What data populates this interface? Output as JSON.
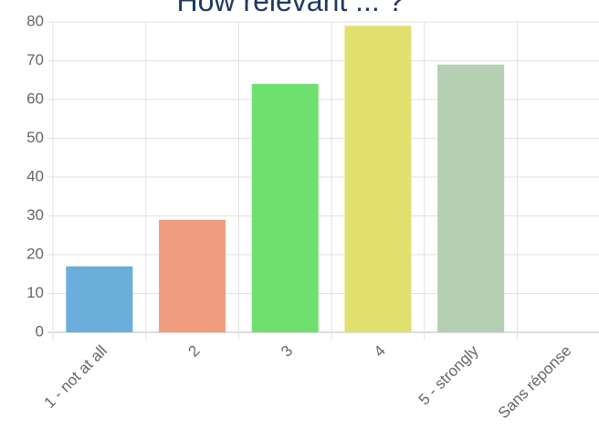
{
  "chart_data": {
    "type": "bar",
    "title": "How relevant ... ?",
    "categories": [
      "1 - not at all",
      "2",
      "3",
      "4",
      "5 - strongly",
      "Sans réponse"
    ],
    "values": [
      17,
      29,
      64,
      79,
      69,
      0
    ],
    "colors": [
      "#6aaedb",
      "#f09c80",
      "#6ee06e",
      "#e1df6e",
      "#b5cfb2",
      "#cccccc"
    ],
    "ylim": [
      0,
      80
    ],
    "yticks": [
      0,
      10,
      20,
      30,
      40,
      50,
      60,
      70,
      80
    ],
    "grid": true
  }
}
